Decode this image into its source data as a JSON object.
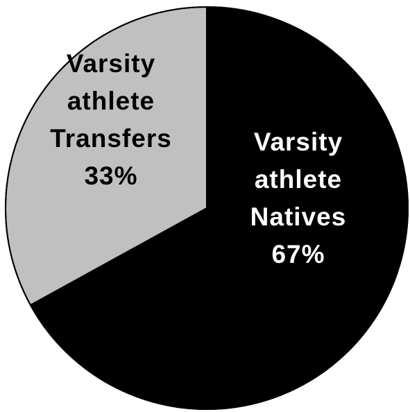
{
  "chart_data": {
    "type": "pie",
    "title": "",
    "slices": [
      {
        "label_lines": [
          "Varsity",
          "athlete",
          "Natives",
          "67%"
        ],
        "value": 67,
        "color": "#000000",
        "label_color": "#ffffff"
      },
      {
        "label_lines": [
          "Varsity",
          "athlete",
          "Transfers",
          "33%"
        ],
        "value": 33,
        "color": "#c0c0c0",
        "label_color": "#000000"
      }
    ],
    "start_angle_deg": 0,
    "direction": "clockwise",
    "outline_color": "#000000",
    "background": "#ffffff"
  }
}
